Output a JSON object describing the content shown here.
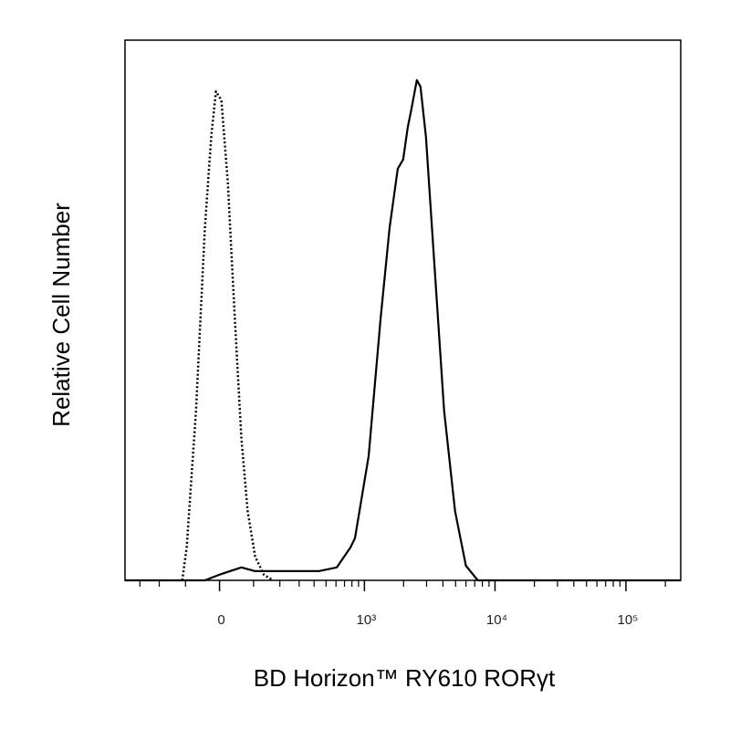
{
  "chart_data": {
    "type": "line",
    "x_label": "BD Horizon™ RY610 RORγt",
    "y_label": "Relative Cell Number",
    "xscale": "biexponential",
    "xlim": [
      -400,
      262144
    ],
    "ylim": [
      0,
      100
    ],
    "xticks": [
      0,
      {
        "value": 1000,
        "label": "10³"
      },
      {
        "value": 10000,
        "label": "10⁴"
      },
      {
        "value": 100000,
        "label": "10⁵"
      }
    ],
    "xminorticks": [
      -300,
      -200,
      -100,
      100,
      200,
      300,
      400,
      500,
      600,
      700,
      800,
      900,
      2000,
      3000,
      4000,
      5000,
      6000,
      7000,
      8000,
      9000,
      20000,
      30000,
      40000,
      50000,
      60000,
      70000,
      80000,
      90000,
      200000
    ],
    "series": [
      {
        "color": "#000000",
        "dash": "dotted",
        "x": [
          -111,
          -96,
          -67,
          -41,
          -23,
          -10,
          5,
          23,
          43,
          62,
          81,
          105,
          136,
          172
        ],
        "values": [
          0,
          6.1,
          31.4,
          65.2,
          82.1,
          90.5,
          88.9,
          73.6,
          48.3,
          26.4,
          12.8,
          4.4,
          1.0,
          0
        ]
      },
      {
        "color": "#000000",
        "dash": "solid",
        "x": [
          -400,
          -41,
          -2.5,
          62,
          105,
          436,
          609,
          779,
          845,
          1078,
          1330,
          1561,
          1804,
          1986,
          2152,
          2295,
          2526,
          2695,
          2966,
          3481,
          4083,
          4952,
          5997,
          7382,
          262144
        ],
        "values": [
          0,
          0,
          1.0,
          2.4,
          1.7,
          1.7,
          2.4,
          6.1,
          7.8,
          23.0,
          48.3,
          65.2,
          76.2,
          77.9,
          83.8,
          87.2,
          92.6,
          91.4,
          82.1,
          56.8,
          31.4,
          12.8,
          2.7,
          0,
          0
        ]
      }
    ]
  }
}
